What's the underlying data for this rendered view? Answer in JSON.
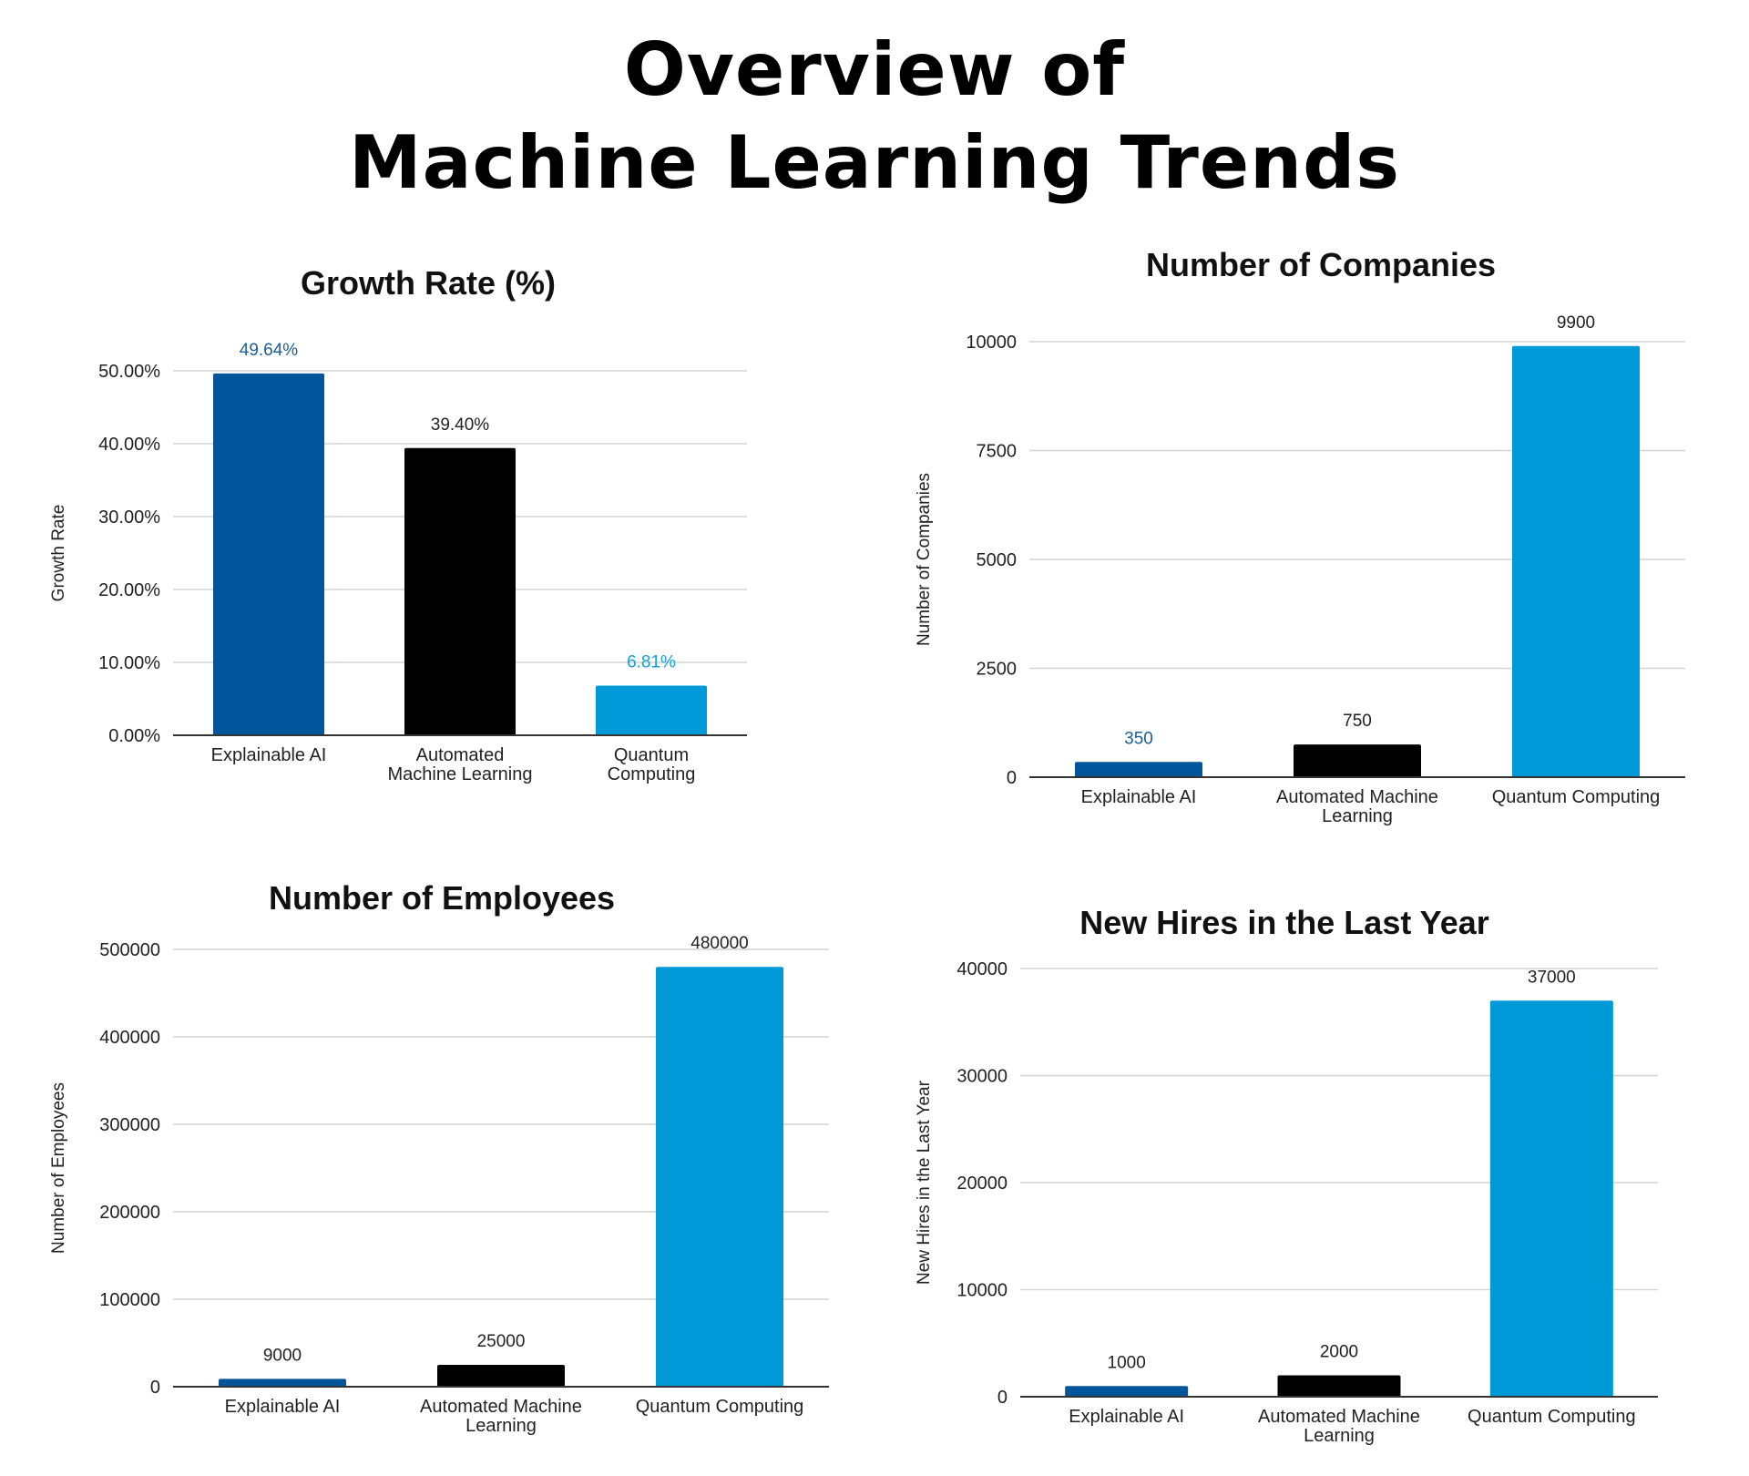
{
  "page": {
    "title_line1": "Overview of",
    "title_line2": "Machine Learning Trends"
  },
  "colors": {
    "explainable": "#02559a",
    "automated": "#000000",
    "quantum": "#0099d8",
    "label_blue": "#1a5f99",
    "label_light": "#16a0d6",
    "label_dark": "#222222"
  },
  "chart_data": [
    {
      "id": "growth",
      "type": "bar",
      "title": "Growth Rate (%)",
      "xlabel": "",
      "ylabel": "Growth Rate",
      "categories": [
        [
          "Explainable AI"
        ],
        [
          "Automated",
          "Machine Learning"
        ],
        [
          "Quantum",
          "Computing"
        ]
      ],
      "values": [
        49.64,
        39.4,
        6.81
      ],
      "data_labels": [
        "49.64%",
        "39.40%",
        "6.81%"
      ],
      "label_colors": [
        "#1a5f99",
        "#222222",
        "#16a0d6"
      ],
      "bar_colors": [
        "#02559a",
        "#000000",
        "#0099d8"
      ],
      "ylim": [
        0,
        50
      ],
      "yticks": [
        0,
        10,
        20,
        30,
        40,
        50
      ],
      "ytick_labels": [
        "0.00%",
        "10.00%",
        "20.00%",
        "30.00%",
        "40.00%",
        "50.00%"
      ],
      "grid": true
    },
    {
      "id": "companies",
      "type": "bar",
      "title": "Number of Companies",
      "xlabel": "",
      "ylabel": "Number of Companies",
      "categories": [
        [
          "Explainable AI"
        ],
        [
          "Automated Machine",
          "Learning"
        ],
        [
          "Quantum Computing"
        ]
      ],
      "values": [
        350,
        750,
        9900
      ],
      "data_labels": [
        "350",
        "750",
        "9900"
      ],
      "label_colors": [
        "#1a5f99",
        "#222222",
        "#222222"
      ],
      "bar_colors": [
        "#02559a",
        "#000000",
        "#0099d8"
      ],
      "ylim": [
        0,
        10000
      ],
      "yticks": [
        0,
        2500,
        5000,
        7500,
        10000
      ],
      "ytick_labels": [
        "0",
        "2500",
        "5000",
        "7500",
        "10000"
      ],
      "grid": true
    },
    {
      "id": "employees",
      "type": "bar",
      "title": "Number of Employees",
      "xlabel": "",
      "ylabel": "Number of Employees",
      "categories": [
        [
          "Explainable AI"
        ],
        [
          "Automated Machine",
          "Learning"
        ],
        [
          "Quantum Computing"
        ]
      ],
      "values": [
        9000,
        25000,
        480000
      ],
      "data_labels": [
        "9000",
        "25000",
        "480000"
      ],
      "label_colors": [
        "#222222",
        "#222222",
        "#222222"
      ],
      "bar_colors": [
        "#02559a",
        "#000000",
        "#0099d8"
      ],
      "ylim": [
        0,
        500000
      ],
      "yticks": [
        0,
        100000,
        200000,
        300000,
        400000,
        500000
      ],
      "ytick_labels": [
        "0",
        "100000",
        "200000",
        "300000",
        "400000",
        "500000"
      ],
      "grid": true
    },
    {
      "id": "hires",
      "type": "bar",
      "title": "New Hires in the Last Year",
      "xlabel": "",
      "ylabel": "New Hires in the Last Year",
      "categories": [
        [
          "Explainable AI"
        ],
        [
          "Automated Machine",
          "Learning"
        ],
        [
          "Quantum Computing"
        ]
      ],
      "values": [
        1000,
        2000,
        37000
      ],
      "data_labels": [
        "1000",
        "2000",
        "37000"
      ],
      "label_colors": [
        "#222222",
        "#222222",
        "#222222"
      ],
      "bar_colors": [
        "#02559a",
        "#000000",
        "#0099d8"
      ],
      "ylim": [
        0,
        40000
      ],
      "yticks": [
        0,
        10000,
        20000,
        30000,
        40000
      ],
      "ytick_labels": [
        "0",
        "10000",
        "20000",
        "30000",
        "40000"
      ],
      "grid": true
    }
  ]
}
